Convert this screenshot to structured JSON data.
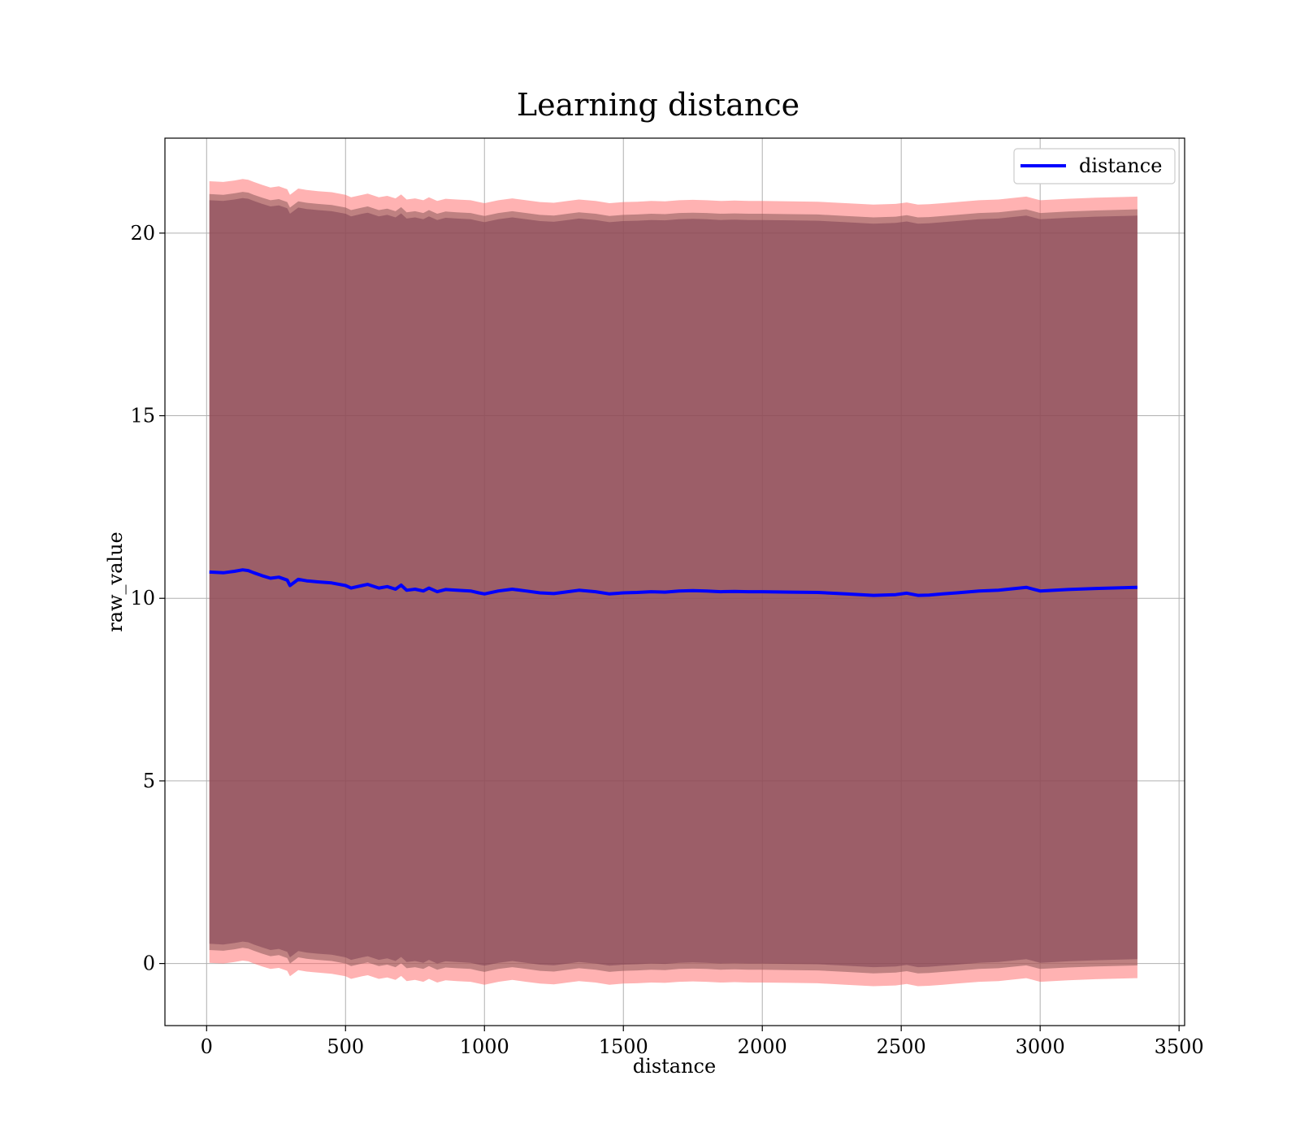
{
  "chart_data": {
    "type": "line",
    "title": "Learning distance",
    "xlabel": "distance",
    "ylabel": "raw_value",
    "xlim": [
      -150,
      3520
    ],
    "ylim": [
      -1.7,
      22.6
    ],
    "xticks": [
      0,
      500,
      1000,
      1500,
      2000,
      2500,
      3000,
      3500
    ],
    "yticks": [
      0,
      5,
      10,
      15,
      20
    ],
    "grid": true,
    "legend_position": "upper right",
    "series": [
      {
        "name": "distance",
        "color": "#0000ff",
        "x": [
          10,
          60,
          100,
          130,
          150,
          170,
          200,
          230,
          260,
          290,
          300,
          330,
          360,
          400,
          450,
          500,
          520,
          560,
          580,
          620,
          650,
          680,
          700,
          720,
          750,
          780,
          800,
          830,
          860,
          900,
          950,
          980,
          1000,
          1050,
          1100,
          1150,
          1200,
          1250,
          1300,
          1340,
          1400,
          1450,
          1500,
          1550,
          1600,
          1650,
          1700,
          1750,
          1800,
          1850,
          1900,
          1950,
          2000,
          2100,
          2200,
          2300,
          2400,
          2480,
          2520,
          2560,
          2600,
          2650,
          2700,
          2780,
          2850,
          2950,
          3000,
          3100,
          3200,
          3350
        ],
        "y": [
          10.72,
          10.7,
          10.74,
          10.78,
          10.76,
          10.7,
          10.62,
          10.55,
          10.58,
          10.5,
          10.35,
          10.52,
          10.48,
          10.45,
          10.42,
          10.35,
          10.28,
          10.35,
          10.38,
          10.28,
          10.32,
          10.25,
          10.36,
          10.22,
          10.25,
          10.2,
          10.28,
          10.18,
          10.24,
          10.22,
          10.2,
          10.15,
          10.12,
          10.2,
          10.25,
          10.2,
          10.15,
          10.13,
          10.18,
          10.22,
          10.18,
          10.12,
          10.15,
          10.16,
          10.18,
          10.17,
          10.2,
          10.21,
          10.2,
          10.18,
          10.19,
          10.18,
          10.18,
          10.17,
          10.16,
          10.12,
          10.08,
          10.1,
          10.14,
          10.08,
          10.09,
          10.12,
          10.15,
          10.2,
          10.22,
          10.3,
          10.2,
          10.24,
          10.27,
          10.3
        ]
      }
    ],
    "bands": [
      {
        "color": "#ff6666",
        "opacity": 0.5,
        "spread": 10.7,
        "center": "series:distance"
      },
      {
        "color": "#8b5a5a",
        "opacity": 0.55,
        "spread": 10.35,
        "center": "series:distance"
      },
      {
        "color": "#7a3b50",
        "opacity": 0.5,
        "spread": 10.18,
        "center": "series:distance"
      }
    ]
  }
}
